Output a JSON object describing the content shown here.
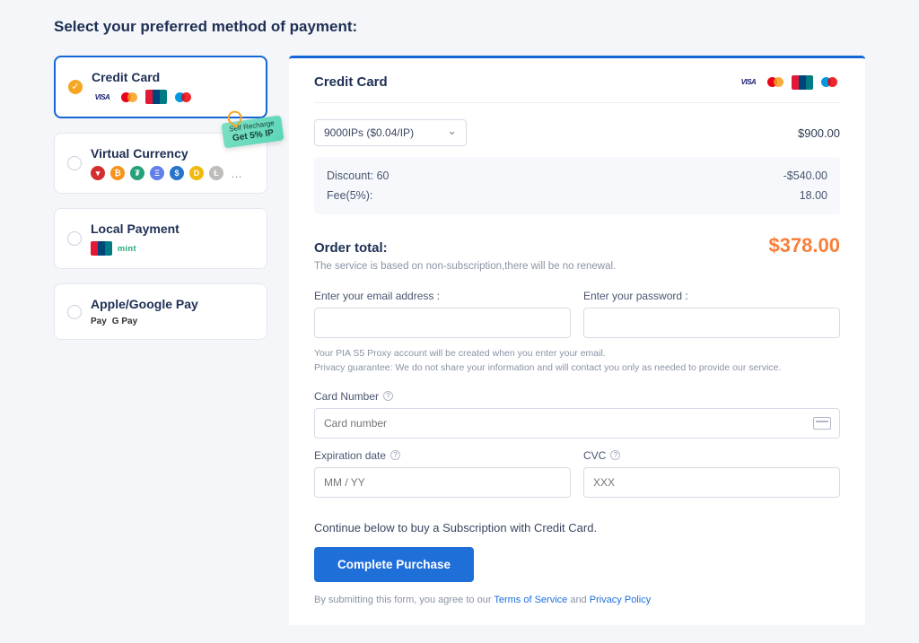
{
  "page_title": "Select your preferred method of payment:",
  "methods": {
    "credit_card": {
      "label": "Credit Card"
    },
    "virtual_currency": {
      "label": "Virtual Currency",
      "promo_line1": "Self Recharge",
      "promo_line2": "Get 5% IP",
      "coins": [
        {
          "bg": "#d32f2f",
          "txt": "▾"
        },
        {
          "bg": "#f7931a",
          "txt": "₿"
        },
        {
          "bg": "#26a17b",
          "txt": "₮"
        },
        {
          "bg": "#627eea",
          "txt": "Ξ"
        },
        {
          "bg": "#2775ca",
          "txt": "$"
        },
        {
          "bg": "#f0b90b",
          "txt": "D"
        },
        {
          "bg": "#bfbbbb",
          "txt": "Ł"
        }
      ]
    },
    "local_payment": {
      "label": "Local Payment",
      "mint": "mint"
    },
    "apple_google": {
      "label": "Apple/Google Pay",
      "apple": " Pay",
      "google": "G Pay"
    }
  },
  "panel": {
    "title": "Credit Card",
    "plan_selected": "9000IPs ($0.04/IP)",
    "plan_price": "$900.00",
    "discount_label": "Discount: 60",
    "discount_value": "-$540.00",
    "fee_label": "Fee(5%):",
    "fee_value": "18.00",
    "total_label": "Order total:",
    "total_amount": "$378.00",
    "total_note": "The service is based on non-subscription,there will be no renewal.",
    "email_label": "Enter your email address :",
    "password_label": "Enter your password :",
    "privacy_line1": "Your PIA S5 Proxy account will be created when you enter your email.",
    "privacy_line2": "Privacy guarantee: We do not share your information and will contact you only as needed to provide our service.",
    "card_number_label": "Card Number",
    "card_number_placeholder": "Card number",
    "exp_label": "Expiration date",
    "exp_placeholder": "MM / YY",
    "cvc_label": "CVC",
    "cvc_placeholder": "XXX",
    "continue_text": "Continue below to buy a Subscription with Credit Card.",
    "buy_button": "Complete Purchase",
    "terms_prefix": "By submitting this form, you agree to our ",
    "terms_link": "Terms of Service",
    "terms_and": " and ",
    "privacy_link": "Privacy Policy"
  },
  "colors": {
    "accent": "#1566d6",
    "total": "#f6803b",
    "promo_bg": "#5bd6b8"
  }
}
